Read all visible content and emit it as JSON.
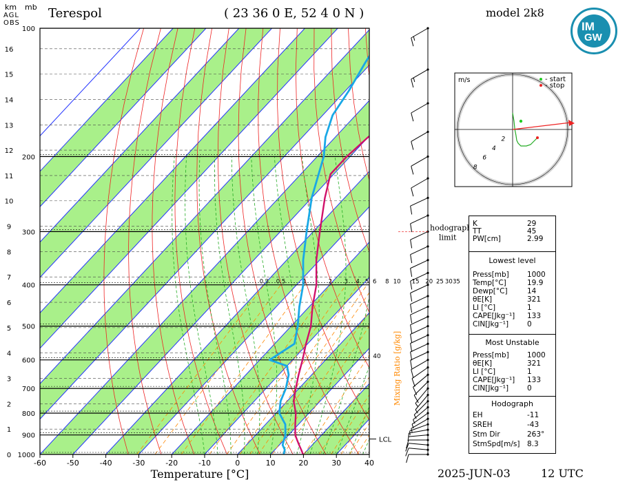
{
  "station": "Terespol",
  "coords": "( 23 36 0 E, 52 4 0 N )",
  "model": "model 2k8",
  "date": "2025-JUN-03",
  "time": "12 UTC",
  "logo": {
    "line1": "IM",
    "line2": "GW"
  },
  "colors": {
    "moist_band": "#a9f08a",
    "isotherm": "#2233ff",
    "dry_adiabat": "#ee2222",
    "moist_adiabat": "#22aa22",
    "mixing": "#ff8800",
    "temp": "#d0106a",
    "dew": "#19a8e6",
    "dew_dark": "#2a6fd1",
    "hodo_line": "#22aa22",
    "hodo_arrow": "#ee2222"
  },
  "chart_data": {
    "type": "line",
    "title": "Terespol",
    "xlabel": "Temperature [°C]",
    "ylabel_left": "km AGL OBS",
    "ylabel_right": "mb",
    "xlim": [
      -60,
      40
    ],
    "ylim_hpa": [
      1000,
      100
    ],
    "x_ticks": [
      "-60",
      "-50",
      "-40",
      "-30",
      "-20",
      "-10",
      "0",
      "10",
      "20",
      "30",
      "40"
    ],
    "p_ticks": [
      "100",
      "200",
      "300",
      "400",
      "500",
      "600",
      "700",
      "800",
      "900",
      "1000"
    ],
    "km_ticks": [
      "0",
      "1",
      "2",
      "3",
      "4",
      "5",
      "6",
      "7",
      "8",
      "9",
      "10",
      "11",
      "12",
      "13",
      "14",
      "15",
      "16"
    ],
    "header_km": "km",
    "header_agl": "AGL",
    "header_obs": "OBS",
    "header_mb": "mb",
    "mixing_label": "Mixing Ratio [g/kg]",
    "mixing_ratios": [
      "0.3",
      "0.5",
      "1",
      "2",
      "3",
      "4",
      "5",
      "6",
      "8",
      "10",
      "15",
      "20",
      "25",
      "30",
      "35"
    ],
    "mixing_40": "40",
    "lcl_label": "LCL",
    "lcl_p": 920,
    "hodograph_limit_label": [
      "hodograph",
      "limit"
    ],
    "series": [
      {
        "name": "T",
        "points": [
          [
            1000,
            19.9
          ],
          [
            975,
            18
          ],
          [
            950,
            16
          ],
          [
            925,
            14
          ],
          [
            900,
            12
          ],
          [
            850,
            9
          ],
          [
            800,
            6
          ],
          [
            750,
            2
          ],
          [
            700,
            -1
          ],
          [
            650,
            -4
          ],
          [
            600,
            -7
          ],
          [
            550,
            -10.5
          ],
          [
            500,
            -14
          ],
          [
            450,
            -19
          ],
          [
            400,
            -24
          ],
          [
            350,
            -31
          ],
          [
            300,
            -38
          ],
          [
            250,
            -46
          ],
          [
            220,
            -51
          ],
          [
            200,
            -51
          ],
          [
            180,
            -50
          ],
          [
            160,
            -47
          ],
          [
            140,
            -45
          ],
          [
            120,
            -44
          ],
          [
            100,
            -43
          ]
        ]
      },
      {
        "name": "Td",
        "points": [
          [
            1000,
            14
          ],
          [
            975,
            13
          ],
          [
            950,
            11
          ],
          [
            925,
            10
          ],
          [
            900,
            9
          ],
          [
            850,
            6
          ],
          [
            800,
            1
          ],
          [
            750,
            -2
          ],
          [
            700,
            -4
          ],
          [
            650,
            -7
          ],
          [
            620,
            -10
          ],
          [
            600,
            -17
          ],
          [
            550,
            -14
          ],
          [
            500,
            -18
          ],
          [
            450,
            -23
          ],
          [
            400,
            -28
          ],
          [
            350,
            -35
          ],
          [
            300,
            -42
          ],
          [
            250,
            -50
          ],
          [
            200,
            -58
          ],
          [
            180,
            -63
          ],
          [
            160,
            -67
          ],
          [
            140,
            -69
          ],
          [
            120,
            -72
          ],
          [
            100,
            -75
          ]
        ]
      }
    ],
    "wind_barbs": [
      {
        "p": 1000,
        "dir": 270,
        "spd": 12
      },
      {
        "p": 975,
        "dir": 275,
        "spd": 14
      },
      {
        "p": 950,
        "dir": 275,
        "spd": 12
      },
      {
        "p": 925,
        "dir": 270,
        "spd": 10
      },
      {
        "p": 900,
        "dir": 265,
        "spd": 8
      },
      {
        "p": 875,
        "dir": 260,
        "spd": 7
      },
      {
        "p": 850,
        "dir": 250,
        "spd": 6
      },
      {
        "p": 825,
        "dir": 240,
        "spd": 6
      },
      {
        "p": 800,
        "dir": 235,
        "spd": 6
      },
      {
        "p": 775,
        "dir": 230,
        "spd": 7
      },
      {
        "p": 750,
        "dir": 225,
        "spd": 7
      },
      {
        "p": 725,
        "dir": 220,
        "spd": 8
      },
      {
        "p": 700,
        "dir": 220,
        "spd": 9
      },
      {
        "p": 675,
        "dir": 225,
        "spd": 10
      },
      {
        "p": 650,
        "dir": 230,
        "spd": 11
      },
      {
        "p": 625,
        "dir": 235,
        "spd": 12
      },
      {
        "p": 600,
        "dir": 240,
        "spd": 13
      },
      {
        "p": 575,
        "dir": 245,
        "spd": 13
      },
      {
        "p": 550,
        "dir": 245,
        "spd": 13
      },
      {
        "p": 525,
        "dir": 245,
        "spd": 12
      },
      {
        "p": 500,
        "dir": 245,
        "spd": 12
      },
      {
        "p": 475,
        "dir": 245,
        "spd": 12
      },
      {
        "p": 450,
        "dir": 245,
        "spd": 12
      },
      {
        "p": 425,
        "dir": 245,
        "spd": 12
      },
      {
        "p": 400,
        "dir": 245,
        "spd": 13
      },
      {
        "p": 375,
        "dir": 245,
        "spd": 13
      },
      {
        "p": 350,
        "dir": 245,
        "spd": 13
      },
      {
        "p": 325,
        "dir": 245,
        "spd": 14
      },
      {
        "p": 300,
        "dir": 245,
        "spd": 14
      },
      {
        "p": 275,
        "dir": 245,
        "spd": 14
      },
      {
        "p": 250,
        "dir": 245,
        "spd": 14
      },
      {
        "p": 225,
        "dir": 240,
        "spd": 14
      },
      {
        "p": 200,
        "dir": 240,
        "spd": 14
      },
      {
        "p": 175,
        "dir": 240,
        "spd": 13
      },
      {
        "p": 150,
        "dir": 240,
        "spd": 14
      },
      {
        "p": 125,
        "dir": 240,
        "spd": 16
      },
      {
        "p": 100,
        "dir": 240,
        "spd": 16
      }
    ],
    "hodograph": {
      "unit": "m/s",
      "legend_start": "- start",
      "legend_stop": "- stop",
      "ring_labels": [
        "2",
        "4",
        "6",
        "8"
      ],
      "points": [
        [
          0,
          -6
        ],
        [
          0.5,
          -3
        ],
        [
          0.8,
          0
        ],
        [
          1.2,
          2
        ],
        [
          1.5,
          4
        ],
        [
          2,
          5
        ],
        [
          3,
          6
        ],
        [
          5,
          6
        ],
        [
          6.5,
          5.5
        ],
        [
          8,
          4
        ],
        [
          9,
          3
        ]
      ],
      "storm_motion": [
        8.3,
        263
      ],
      "arrow_end": [
        21,
        2.5
      ]
    }
  },
  "indices": {
    "top": [
      {
        "k": "K",
        "v": "29"
      },
      {
        "k": "TT",
        "v": "45"
      },
      {
        "k": "PW[cm]",
        "v": "2.99"
      }
    ],
    "lowest_title": "Lowest level",
    "lowest": [
      {
        "k": "Press[mb]",
        "v": "1000"
      },
      {
        "k": "Temp[°C]",
        "v": "19.9"
      },
      {
        "k": "Dewp[°C]",
        "v": "14"
      },
      {
        "k": "θE[K]",
        "v": "321"
      },
      {
        "k": "LI [°C]",
        "v": "1"
      },
      {
        "k": "CAPE[Jkg⁻¹]",
        "v": "133"
      },
      {
        "k": "CIN[Jkg⁻¹]",
        "v": "0"
      }
    ],
    "unstable_title": "Most Unstable",
    "unstable": [
      {
        "k": "Press[mb]",
        "v": "1000"
      },
      {
        "k": "θE[K]",
        "v": "321"
      },
      {
        "k": "LI [°C]",
        "v": "1"
      },
      {
        "k": "CAPE[Jkg⁻¹]",
        "v": "133"
      },
      {
        "k": "CIN[Jkg⁻¹]",
        "v": "0"
      }
    ],
    "hodo_title": "Hodograph",
    "hodo": [
      {
        "k": "EH",
        "v": "-11"
      },
      {
        "k": "SREH",
        "v": "-43"
      },
      {
        "k": "Stm Dir",
        "v": "263°"
      },
      {
        "k": "StmSpd[m/s]",
        "v": "8.3"
      }
    ]
  }
}
